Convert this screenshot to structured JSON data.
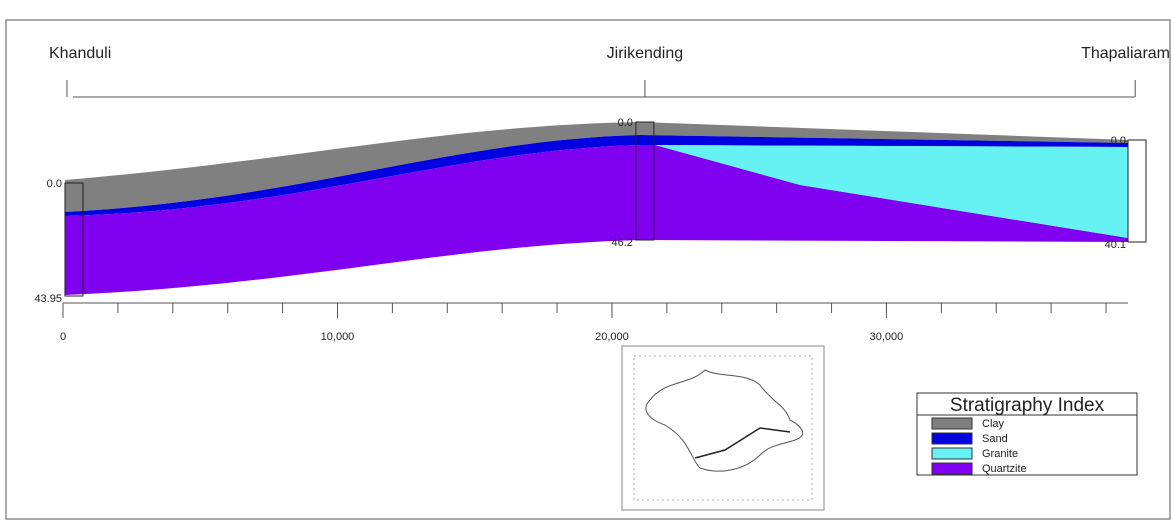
{
  "locations": [
    {
      "name": "Khanduli",
      "distance": 400,
      "top_label": "0.0",
      "bottom_label": "43.95"
    },
    {
      "name": "Jirikending",
      "distance": 21200,
      "top_label": "0.0",
      "bottom_label": "46.2"
    },
    {
      "name": "Thapaliaram",
      "distance": 38800,
      "top_label": "0.0",
      "bottom_label": "40.1"
    }
  ],
  "axis": {
    "xlim": [
      0,
      38800
    ],
    "xticks": [
      0,
      {
        "value": 10000,
        "label": "10,000"
      },
      {
        "value": 20000,
        "label": "20,000"
      },
      {
        "value": 30000,
        "label": "30,000"
      }
    ]
  },
  "legend": {
    "title": "Stratigraphy Index",
    "items": [
      {
        "name": "Clay",
        "color": "#808080"
      },
      {
        "name": "Sand",
        "color": "#0000e0"
      },
      {
        "name": "Granite",
        "color": "#66f2f2"
      },
      {
        "name": "Quartzite",
        "color": "#8000f0"
      }
    ]
  }
}
